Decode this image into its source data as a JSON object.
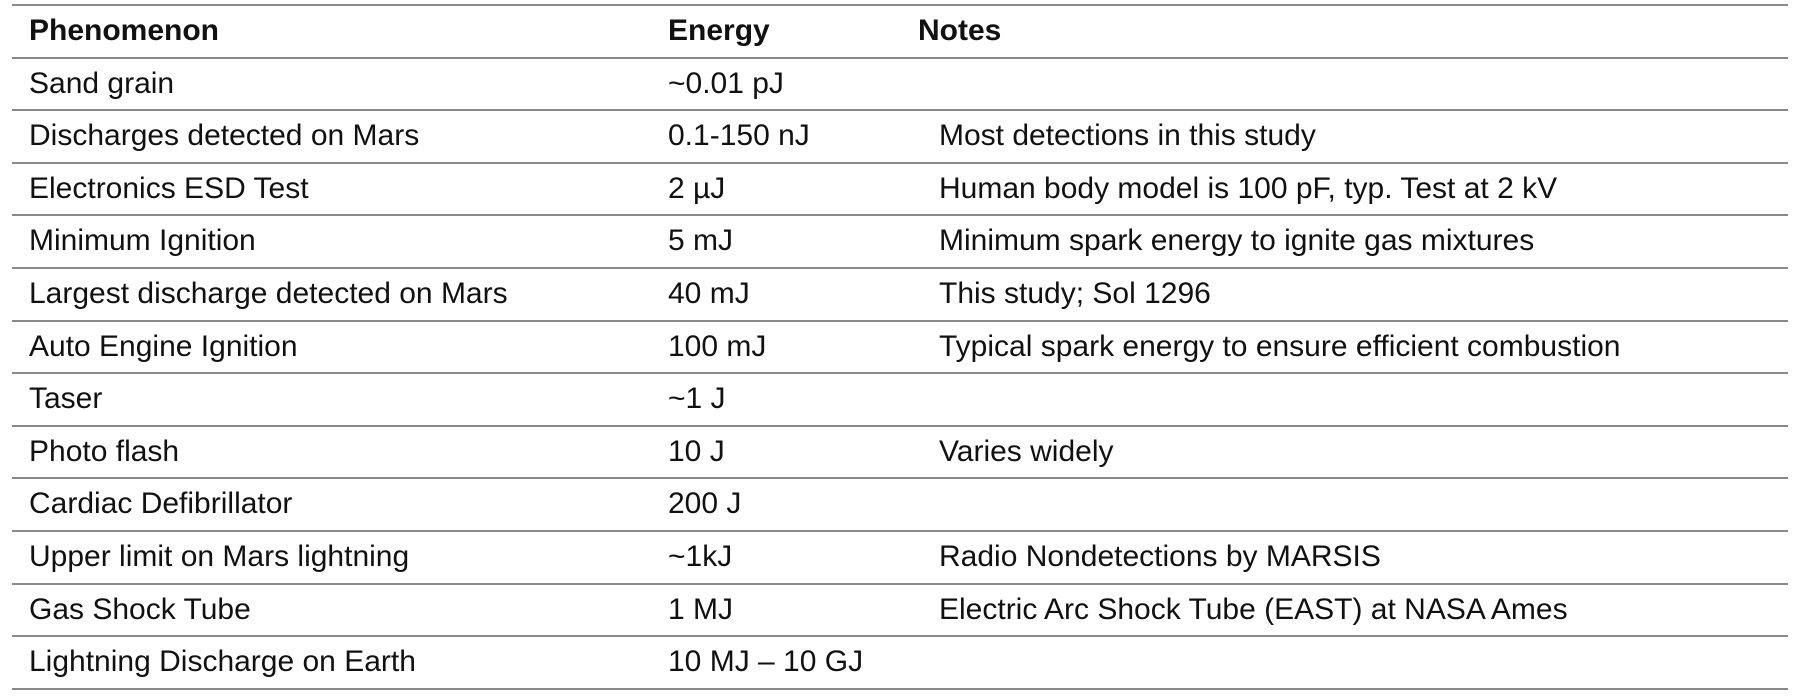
{
  "table": {
    "header": [
      "Phenomenon",
      "Energy",
      "Notes"
    ],
    "rows": [
      {
        "phenomenon": "Sand grain",
        "energy": "~0.01 pJ"
      },
      {
        "phenomenon": "Discharges detected on Mars",
        "energy": "0.1-150 nJ",
        "notes": "Most detections in this study"
      },
      {
        "phenomenon": "Electronics ESD Test",
        "energy": "2 µJ",
        "notes": "Human body model is 100 pF, typ. Test at 2 kV"
      },
      {
        "phenomenon": "Minimum Ignition",
        "energy": "5 mJ",
        "notes": "Minimum spark energy to ignite gas mixtures"
      },
      {
        "phenomenon": "Largest discharge detected on Mars",
        "energy": "40 mJ",
        "notes": "This study; Sol 1296"
      },
      {
        "phenomenon": "Auto Engine Ignition",
        "energy": "100 mJ",
        "notes": "Typical spark energy to ensure efficient combustion"
      },
      {
        "phenomenon": "Taser",
        "energy": "~1 J"
      },
      {
        "phenomenon": "Photo flash",
        "energy": "10 J",
        "notes": "Varies widely"
      },
      {
        "phenomenon": "Cardiac Defibrillator",
        "energy": "200 J"
      },
      {
        "phenomenon": "Upper limit on Mars lightning",
        "energy": "~1kJ",
        "notes": "Radio Nondetections by MARSIS"
      },
      {
        "phenomenon": "Gas Shock Tube",
        "energy": "1 MJ",
        "notes": "Electric Arc Shock Tube (EAST) at NASA Ames"
      },
      {
        "phenomenon": "Lightning Discharge on Earth",
        "energy": "10 MJ – 10 GJ"
      }
    ]
  }
}
